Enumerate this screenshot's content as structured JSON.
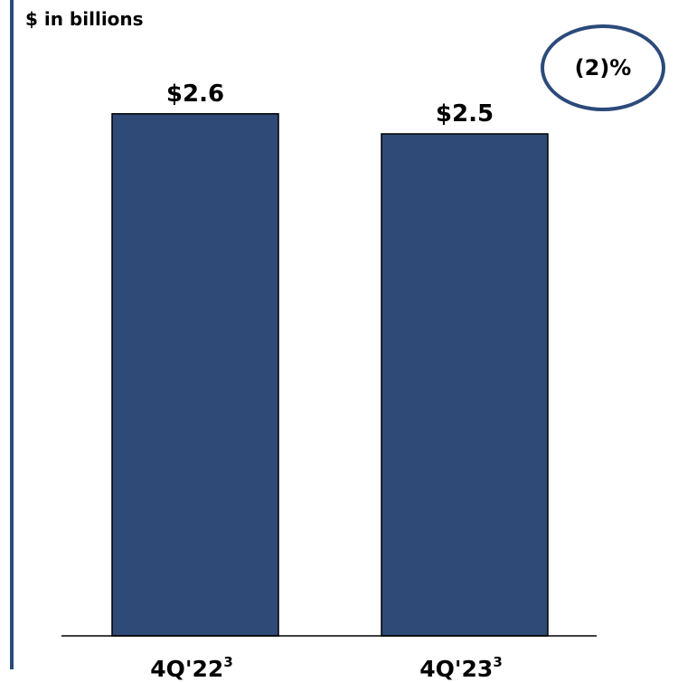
{
  "unit_label": "$ in billions",
  "change_badge": "(2)%",
  "colors": {
    "bar": "#2f4a77",
    "accent": "#2c4a7a"
  },
  "chart_data": {
    "type": "bar",
    "categories": [
      "4Q'22",
      "4Q'23"
    ],
    "category_footnotes": [
      "3",
      "3"
    ],
    "values": [
      2.6,
      2.5
    ],
    "data_labels": [
      "$2.6",
      "$2.5"
    ],
    "title": "",
    "xlabel": "",
    "ylabel": "$ in billions"
  }
}
